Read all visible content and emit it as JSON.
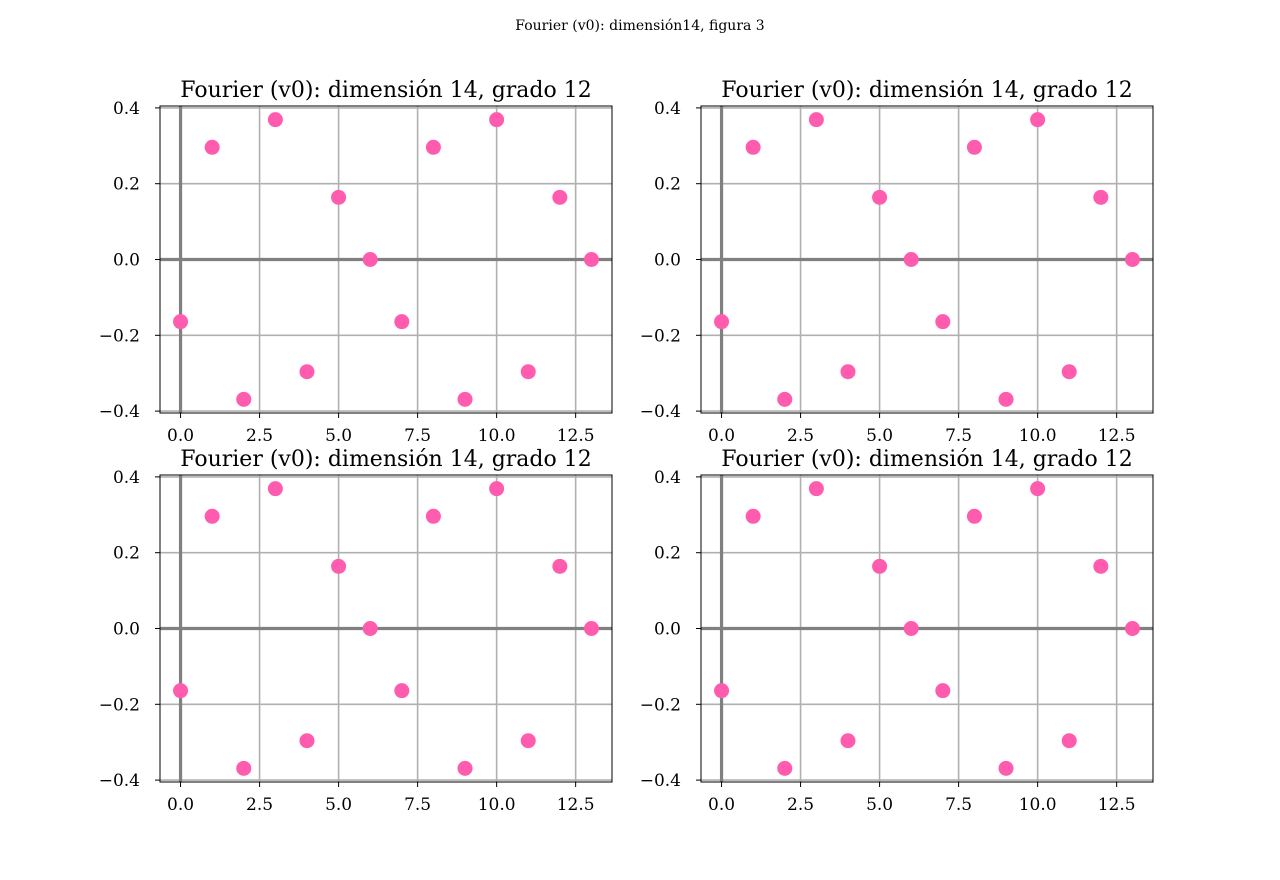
{
  "figure": {
    "suptitle": "Fourier (v0): dimensión14, figura 3"
  },
  "chart_data": [
    {
      "type": "scatter",
      "title": "Fourier (v0): dimensión 14, grado 12",
      "xlabel": "",
      "ylabel": "",
      "x": [
        0,
        1,
        2,
        3,
        4,
        5,
        6,
        7,
        8,
        9,
        10,
        11,
        12,
        13
      ],
      "y": [
        -0.164,
        0.296,
        -0.369,
        0.369,
        -0.296,
        0.164,
        0.0,
        -0.164,
        0.296,
        -0.369,
        0.369,
        -0.296,
        0.164,
        0.0
      ],
      "xlim": [
        -0.65,
        13.65
      ],
      "ylim": [
        -0.405,
        0.405
      ],
      "xticks": [
        0.0,
        2.5,
        5.0,
        7.5,
        10.0,
        12.5
      ],
      "xtick_labels": [
        "0.0",
        "2.5",
        "5.0",
        "7.5",
        "10.0",
        "12.5"
      ],
      "yticks": [
        0.4,
        0.2,
        0.0,
        -0.2,
        -0.4
      ],
      "ytick_labels": [
        "0.4",
        "0.2",
        "0.0",
        "−0.2",
        "−0.4"
      ],
      "grid": true,
      "marker_color": "#ff5cb0"
    },
    {
      "type": "scatter",
      "title": "Fourier (v0): dimensión 14, grado 12",
      "xlabel": "",
      "ylabel": "",
      "x": [
        0,
        1,
        2,
        3,
        4,
        5,
        6,
        7,
        8,
        9,
        10,
        11,
        12,
        13
      ],
      "y": [
        -0.164,
        0.296,
        -0.369,
        0.369,
        -0.296,
        0.164,
        0.0,
        -0.164,
        0.296,
        -0.369,
        0.369,
        -0.296,
        0.164,
        0.0
      ],
      "xlim": [
        -0.65,
        13.65
      ],
      "ylim": [
        -0.405,
        0.405
      ],
      "xticks": [
        0.0,
        2.5,
        5.0,
        7.5,
        10.0,
        12.5
      ],
      "xtick_labels": [
        "0.0",
        "2.5",
        "5.0",
        "7.5",
        "10.0",
        "12.5"
      ],
      "yticks": [
        0.4,
        0.2,
        0.0,
        -0.2,
        -0.4
      ],
      "ytick_labels": [
        "0.4",
        "0.2",
        "0.0",
        "−0.2",
        "−0.4"
      ],
      "grid": true,
      "marker_color": "#ff5cb0"
    },
    {
      "type": "scatter",
      "title": "Fourier (v0): dimensión 14, grado 12",
      "xlabel": "",
      "ylabel": "",
      "x": [
        0,
        1,
        2,
        3,
        4,
        5,
        6,
        7,
        8,
        9,
        10,
        11,
        12,
        13
      ],
      "y": [
        -0.164,
        0.296,
        -0.369,
        0.369,
        -0.296,
        0.164,
        0.0,
        -0.164,
        0.296,
        -0.369,
        0.369,
        -0.296,
        0.164,
        0.0
      ],
      "xlim": [
        -0.65,
        13.65
      ],
      "ylim": [
        -0.405,
        0.405
      ],
      "xticks": [
        0.0,
        2.5,
        5.0,
        7.5,
        10.0,
        12.5
      ],
      "xtick_labels": [
        "0.0",
        "2.5",
        "5.0",
        "7.5",
        "10.0",
        "12.5"
      ],
      "yticks": [
        0.4,
        0.2,
        0.0,
        -0.2,
        -0.4
      ],
      "ytick_labels": [
        "0.4",
        "0.2",
        "0.0",
        "−0.2",
        "−0.4"
      ],
      "grid": true,
      "marker_color": "#ff5cb0"
    },
    {
      "type": "scatter",
      "title": "Fourier (v0): dimensión 14, grado 12",
      "xlabel": "",
      "ylabel": "",
      "x": [
        0,
        1,
        2,
        3,
        4,
        5,
        6,
        7,
        8,
        9,
        10,
        11,
        12,
        13
      ],
      "y": [
        -0.164,
        0.296,
        -0.369,
        0.369,
        -0.296,
        0.164,
        0.0,
        -0.164,
        0.296,
        -0.369,
        0.369,
        -0.296,
        0.164,
        0.0
      ],
      "xlim": [
        -0.65,
        13.65
      ],
      "ylim": [
        -0.405,
        0.405
      ],
      "xticks": [
        0.0,
        2.5,
        5.0,
        7.5,
        10.0,
        12.5
      ],
      "xtick_labels": [
        "0.0",
        "2.5",
        "5.0",
        "7.5",
        "10.0",
        "12.5"
      ],
      "yticks": [
        0.4,
        0.2,
        0.0,
        -0.2,
        -0.4
      ],
      "ytick_labels": [
        "0.4",
        "0.2",
        "0.0",
        "−0.2",
        "−0.4"
      ],
      "grid": true,
      "marker_color": "#ff5cb0"
    }
  ]
}
